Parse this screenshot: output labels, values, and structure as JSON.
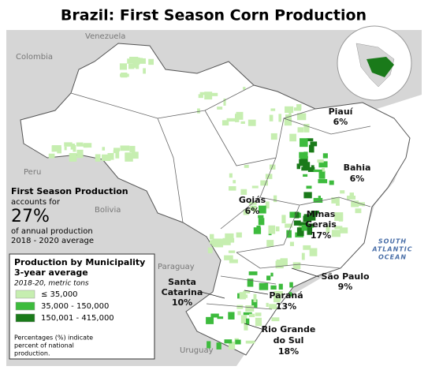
{
  "title": "Brazil: First Season Corn Production",
  "countries": [
    "Venezuela",
    "Colombia",
    "Peru",
    "Bolivia",
    "Paraguay",
    "Uruguay"
  ],
  "ocean": [
    "SOUTH",
    "ATLANTIC",
    "OCEAN"
  ],
  "states": [
    {
      "name": [
        "Piauí"
      ],
      "share": "6%"
    },
    {
      "name": [
        "Bahia"
      ],
      "share": "6%"
    },
    {
      "name": [
        "Goiás"
      ],
      "share": "6%"
    },
    {
      "name": [
        "Minas",
        "Gerais"
      ],
      "share": "17%"
    },
    {
      "name": [
        "São Paulo"
      ],
      "share": "9%"
    },
    {
      "name": [
        "Paraná"
      ],
      "share": "13%"
    },
    {
      "name": [
        "Santa",
        "Catarina"
      ],
      "share": "10%"
    },
    {
      "name": [
        "Rio Grande",
        "do Sul"
      ],
      "share": "18%"
    }
  ],
  "summary": {
    "heading": "First Season Production",
    "lead": "accounts for",
    "share": "27%",
    "lines": [
      "of annual production",
      "2018 - 2020 average"
    ]
  },
  "legend": {
    "title": [
      "Production by Municipality",
      "3-year average"
    ],
    "subtitle": "2018-20, metric tons",
    "classes": [
      {
        "label": "≤ 35,000",
        "color": "#c6eeb0"
      },
      {
        "label": "35,000 - 150,000",
        "color": "#3dbb3d"
      },
      {
        "label": "150,001 - 415,000",
        "color": "#1a7a1a"
      }
    ],
    "note": [
      "Percentages (%) indicate",
      "percent of national",
      "production."
    ]
  }
}
